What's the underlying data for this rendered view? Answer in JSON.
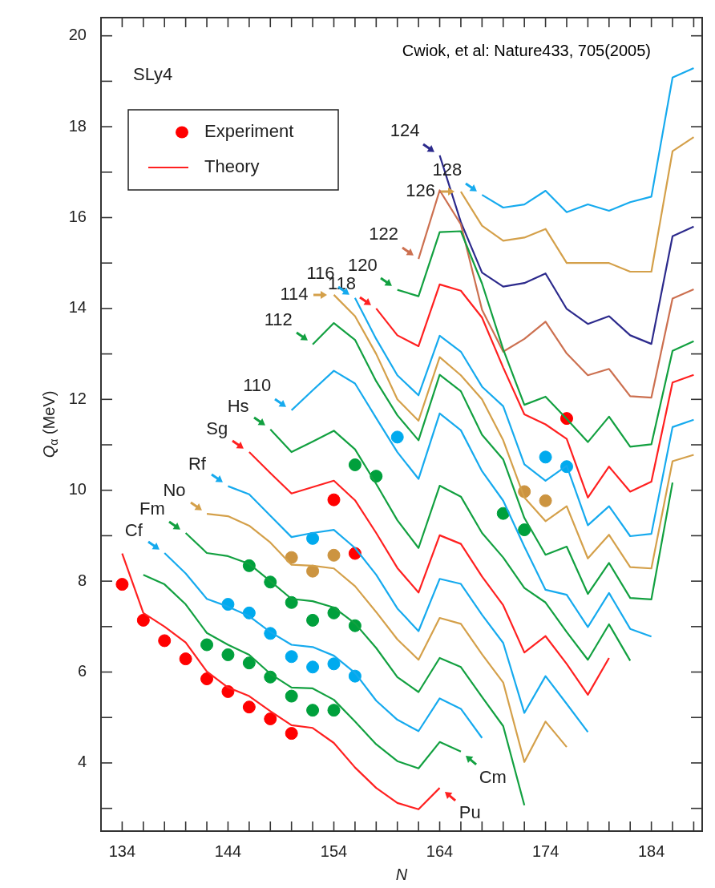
{
  "chart_data": {
    "type": "line",
    "xlabel": "N",
    "ylabel": "Q$_{α}$ (MeV)",
    "xlim": [
      132,
      188.8
    ],
    "ylim": [
      2.5,
      20.4
    ],
    "xticks": [
      134,
      {
        "value": 136,
        "label": null
      },
      {
        "value": 138,
        "label": null
      },
      {
        "value": 140,
        "label": null
      },
      {
        "value": 142,
        "label": null
      },
      144,
      {
        "value": 146,
        "label": null
      },
      {
        "value": 148,
        "label": null
      },
      {
        "value": 150,
        "label": null
      },
      {
        "value": 152,
        "label": null
      },
      154,
      {
        "value": 156,
        "label": null
      },
      {
        "value": 158,
        "label": null
      },
      {
        "value": 160,
        "label": null
      },
      {
        "value": 162,
        "label": null
      },
      164,
      {
        "value": 166,
        "label": null
      },
      {
        "value": 168,
        "label": null
      },
      {
        "value": 170,
        "label": null
      },
      {
        "value": 172,
        "label": null
      },
      174,
      {
        "value": 176,
        "label": null
      },
      {
        "value": 178,
        "label": null
      },
      {
        "value": 180,
        "label": null
      },
      {
        "value": 182,
        "label": null
      },
      184,
      {
        "value": 186,
        "label": null
      },
      {
        "value": 188,
        "label": null
      }
    ],
    "yticks": [
      {
        "value": 3,
        "label": null
      },
      4,
      {
        "value": 5,
        "label": null
      },
      6,
      {
        "value": 7,
        "label": null
      },
      8,
      {
        "value": 9,
        "label": null
      },
      10,
      {
        "value": 11,
        "label": null
      },
      12,
      {
        "value": 13,
        "label": null
      },
      14,
      {
        "value": 15,
        "label": null
      },
      16,
      {
        "value": 17,
        "label": null
      },
      18,
      {
        "value": 19,
        "label": null
      },
      20
    ],
    "legend": "top left",
    "series": [
      {
        "name": "Theory",
        "color": "#ff2020",
        "x": [
          134,
          136,
          138,
          140,
          142,
          144,
          146,
          148,
          150,
          152,
          154,
          156,
          158,
          160,
          162,
          164
        ],
        "values": [
          8.61,
          7.3,
          7.0,
          6.65,
          6.01,
          5.66,
          5.47,
          5.14,
          4.83,
          4.77,
          4.44,
          3.9,
          3.45,
          3.12,
          2.98,
          3.45
        ]
      },
      {
        "color": "#12a040",
        "x": [
          136,
          138,
          140,
          142,
          144,
          146,
          148,
          150,
          152,
          154,
          156,
          158,
          160,
          162,
          164,
          166
        ],
        "values": [
          8.14,
          7.93,
          7.49,
          6.86,
          6.6,
          6.38,
          5.96,
          5.66,
          5.64,
          5.39,
          4.91,
          4.41,
          4.04,
          3.88,
          4.46,
          4.25
        ]
      },
      {
        "color": "#16aaee",
        "x": [
          138,
          140,
          142,
          144,
          146,
          148,
          150,
          152,
          154,
          156,
          158,
          160,
          162,
          164,
          166,
          168
        ],
        "values": [
          8.62,
          8.17,
          7.61,
          7.44,
          7.23,
          6.88,
          6.6,
          6.55,
          6.36,
          5.98,
          5.37,
          4.95,
          4.7,
          5.42,
          5.19,
          4.55
        ]
      },
      {
        "color": "#12a040",
        "x": [
          140,
          142,
          144,
          146,
          148,
          150,
          152,
          154,
          156,
          158,
          160,
          162,
          164,
          166,
          168,
          170,
          172
        ],
        "values": [
          9.06,
          8.62,
          8.55,
          8.38,
          8.0,
          7.61,
          7.56,
          7.42,
          7.07,
          6.53,
          5.89,
          5.56,
          6.31,
          6.11,
          5.45,
          4.81,
          3.07
        ]
      },
      {
        "color": "#d4a04a",
        "x": [
          142,
          144,
          146,
          148,
          150,
          152,
          154,
          156,
          158,
          160,
          162,
          164,
          166,
          168,
          170,
          172,
          174,
          176
        ],
        "values": [
          9.48,
          9.43,
          9.22,
          8.85,
          8.36,
          8.34,
          8.28,
          7.89,
          7.32,
          6.72,
          6.27,
          7.19,
          7.06,
          6.39,
          5.77,
          4.02,
          4.91,
          4.35
        ]
      },
      {
        "color": "#16aaee",
        "x": [
          144,
          146,
          148,
          150,
          152,
          154,
          156,
          158,
          160,
          162,
          164,
          166,
          168,
          170,
          172,
          174,
          176,
          178
        ],
        "values": [
          10.09,
          9.91,
          9.44,
          8.97,
          9.06,
          9.13,
          8.73,
          8.14,
          7.4,
          6.9,
          8.05,
          7.94,
          7.26,
          6.64,
          5.1,
          5.91,
          5.3,
          4.68
        ]
      },
      {
        "color": "#ff2020",
        "x": [
          146,
          148,
          150,
          152,
          154,
          156,
          158,
          160,
          162,
          164,
          166,
          168,
          170,
          172,
          174,
          176,
          178,
          180
        ],
        "values": [
          10.84,
          10.38,
          9.93,
          10.07,
          10.21,
          9.78,
          9.06,
          8.29,
          7.75,
          9.01,
          8.82,
          8.1,
          7.47,
          6.43,
          6.79,
          6.18,
          5.5,
          6.31
        ]
      },
      {
        "color": "#12a040",
        "x": [
          148,
          150,
          152,
          154,
          156,
          158,
          160,
          162,
          164,
          166,
          168,
          170,
          172,
          174,
          176,
          178,
          180,
          182
        ],
        "values": [
          11.34,
          10.84,
          11.07,
          11.31,
          10.9,
          10.14,
          9.34,
          8.73,
          10.1,
          9.86,
          9.06,
          8.52,
          7.85,
          7.53,
          6.88,
          6.27,
          7.05,
          6.25
        ]
      },
      {
        "color": "#16aaee",
        "x": [
          150,
          152,
          154,
          156,
          158,
          160,
          162,
          164,
          166,
          168,
          170,
          172,
          174,
          176,
          178,
          180,
          182,
          184
        ],
        "values": [
          11.76,
          12.2,
          12.63,
          12.35,
          11.59,
          10.84,
          10.25,
          11.69,
          11.32,
          10.42,
          9.77,
          8.76,
          7.81,
          7.7,
          6.99,
          7.74,
          6.95,
          6.78
        ]
      },
      {
        "color": "#12a040",
        "x": [
          152,
          154,
          156,
          158,
          160,
          162,
          164,
          166,
          168,
          170,
          172,
          174,
          176,
          178,
          180,
          182,
          184,
          186
        ],
        "values": [
          13.21,
          13.68,
          13.31,
          12.4,
          11.65,
          11.1,
          12.54,
          12.18,
          11.22,
          10.68,
          9.39,
          8.58,
          8.76,
          7.72,
          8.4,
          7.63,
          7.6,
          10.17
        ]
      },
      {
        "color": "#d4a04a",
        "x": [
          154,
          156,
          158,
          160,
          162,
          164,
          166,
          168,
          170,
          172,
          174,
          176,
          178,
          180,
          182,
          184,
          186,
          188
        ],
        "values": [
          14.3,
          13.83,
          13.0,
          12.0,
          11.53,
          12.93,
          12.53,
          12.0,
          11.1,
          9.84,
          9.32,
          9.65,
          8.5,
          9.02,
          8.31,
          8.28,
          10.64,
          10.78
        ]
      },
      {
        "color": "#16aaee",
        "x": [
          156,
          158,
          160,
          162,
          164,
          166,
          168,
          170,
          172,
          174,
          176,
          178,
          180,
          182,
          184,
          186,
          188
        ],
        "values": [
          14.23,
          13.33,
          12.53,
          12.09,
          13.4,
          13.05,
          12.28,
          11.85,
          10.57,
          10.21,
          10.54,
          9.23,
          9.65,
          8.99,
          9.04,
          11.39,
          11.55
        ]
      },
      {
        "color": "#ff2020",
        "x": [
          158,
          160,
          162,
          164,
          166,
          168,
          170,
          172,
          174,
          176,
          178,
          180,
          182,
          184,
          186,
          188
        ],
        "values": [
          14.0,
          13.41,
          13.17,
          14.53,
          14.39,
          13.8,
          12.7,
          11.67,
          11.45,
          11.13,
          9.84,
          10.52,
          9.97,
          10.19,
          12.37,
          12.54
        ]
      },
      {
        "color": "#12a040",
        "x": [
          160,
          162,
          164,
          166,
          168,
          170,
          172,
          174,
          176,
          178,
          180,
          182,
          184,
          186,
          188
        ],
        "values": [
          14.41,
          14.27,
          15.68,
          15.7,
          14.55,
          13.1,
          11.88,
          12.06,
          11.57,
          11.06,
          11.62,
          10.96,
          11.01,
          13.07,
          13.28
        ]
      },
      {
        "color": "#cc7050",
        "x": [
          162,
          164,
          166,
          168,
          170,
          172,
          174,
          176,
          178,
          180,
          182,
          184,
          186,
          188
        ],
        "values": [
          15.09,
          16.6,
          15.85,
          13.97,
          13.05,
          13.33,
          13.71,
          13.01,
          12.53,
          12.67,
          12.07,
          12.04,
          14.22,
          14.42
        ]
      },
      {
        "color": "#2c2a8c",
        "x": [
          164,
          166,
          168,
          170,
          172,
          174,
          176,
          178,
          180,
          182,
          184,
          186,
          188
        ],
        "values": [
          17.37,
          15.9,
          14.79,
          14.48,
          14.56,
          14.77,
          13.99,
          13.66,
          13.83,
          13.41,
          13.22,
          15.59,
          15.8
        ]
      },
      {
        "color": "#d4a04a",
        "x": [
          166,
          168,
          170,
          172,
          174,
          176,
          178,
          180,
          182,
          184,
          186,
          188
        ],
        "values": [
          16.57,
          15.82,
          15.49,
          15.56,
          15.75,
          15.0,
          15.0,
          15.0,
          14.81,
          14.81,
          17.46,
          17.77
        ]
      },
      {
        "color": "#16aaee",
        "x": [
          168,
          170,
          172,
          174,
          176,
          178,
          180,
          182,
          184,
          186,
          188
        ],
        "values": [
          16.5,
          16.22,
          16.29,
          16.59,
          16.12,
          16.29,
          16.15,
          16.34,
          16.46,
          19.08,
          19.29
        ]
      },
      {
        "type": "scatter",
        "name": "Experiment",
        "marker": "circle",
        "color": "#ff0000",
        "x": [
          134,
          136,
          138,
          140,
          142,
          144,
          146,
          148,
          150,
          142,
          144,
          146,
          148,
          150,
          152,
          154,
          144,
          146,
          148,
          150,
          152,
          154,
          156,
          146,
          148,
          150,
          152,
          154,
          156,
          150,
          152,
          154,
          152,
          154,
          156,
          156,
          158,
          160,
          170,
          172,
          172,
          174,
          174,
          176,
          176
        ],
        "values": [
          7.93,
          7.14,
          6.69,
          6.29,
          5.85,
          5.57,
          5.23,
          4.97,
          4.65,
          6.6,
          6.38,
          6.2,
          5.89,
          5.47,
          5.16,
          5.16,
          7.49,
          7.3,
          6.85,
          6.34,
          6.11,
          6.18,
          5.91,
          8.34,
          7.98,
          7.53,
          7.14,
          7.3,
          7.02,
          8.52,
          8.22,
          8.57,
          8.94,
          9.79,
          8.61,
          10.56,
          10.31,
          11.17,
          9.49,
          9.13,
          9.97,
          9.77,
          10.73,
          10.52,
          11.58
        ],
        "colors": [
          "#ff0000",
          "#ff0000",
          "#ff0000",
          "#ff0000",
          "#ff0000",
          "#ff0000",
          "#ff0000",
          "#ff0000",
          "#ff0000",
          "#00a03c",
          "#00a03c",
          "#00a03c",
          "#00a03c",
          "#00a03c",
          "#00a03c",
          "#00a03c",
          "#00aaee",
          "#00aaee",
          "#00aaee",
          "#00aaee",
          "#00aaee",
          "#00aaee",
          "#00aaee",
          "#00a03c",
          "#00a03c",
          "#00a03c",
          "#00a03c",
          "#00a03c",
          "#00a03c",
          "#cc9440",
          "#cc9440",
          "#cc9440",
          "#00aaee",
          "#ff0000",
          "#ff0000",
          "#00a03c",
          "#00a03c",
          "#00aaee",
          "#00a03c",
          "#00a03c",
          "#cc9440",
          "#cc9440",
          "#00aaee",
          "#00aaee",
          "#ff0000"
        ]
      }
    ],
    "annotations": [
      {
        "text": "Pu",
        "x": 164,
        "y": 3.45
      },
      {
        "text": "Cm",
        "x": 166,
        "y": 4.25
      },
      {
        "text": "Cf",
        "x": 138,
        "y": 8.62
      },
      {
        "text": "Fm",
        "x": 140,
        "y": 9.06
      },
      {
        "text": "No",
        "x": 142,
        "y": 9.48
      },
      {
        "text": "Rf",
        "x": 144,
        "y": 10.09
      },
      {
        "text": "Sg",
        "x": 146,
        "y": 10.84
      },
      {
        "text": "Hs",
        "x": 148,
        "y": 11.34
      },
      {
        "text": "110",
        "x": 150,
        "y": 11.76
      },
      {
        "text": "112",
        "x": 152,
        "y": 13.21
      },
      {
        "text": "114",
        "x": 154,
        "y": 14.3
      },
      {
        "text": "116",
        "x": 156,
        "y": 14.23
      },
      {
        "text": "118",
        "x": 158,
        "y": 14.0
      },
      {
        "text": "120",
        "x": 160,
        "y": 14.41
      },
      {
        "text": "122",
        "x": 162,
        "y": 15.09
      },
      {
        "text": "124",
        "x": 164,
        "y": 17.37
      },
      {
        "text": "126",
        "x": 166,
        "y": 16.57
      },
      {
        "text": "128",
        "x": 168,
        "y": 16.5
      },
      "Cwiok, et al: Nature433, 705(2005)",
      "SLy4"
    ]
  }
}
